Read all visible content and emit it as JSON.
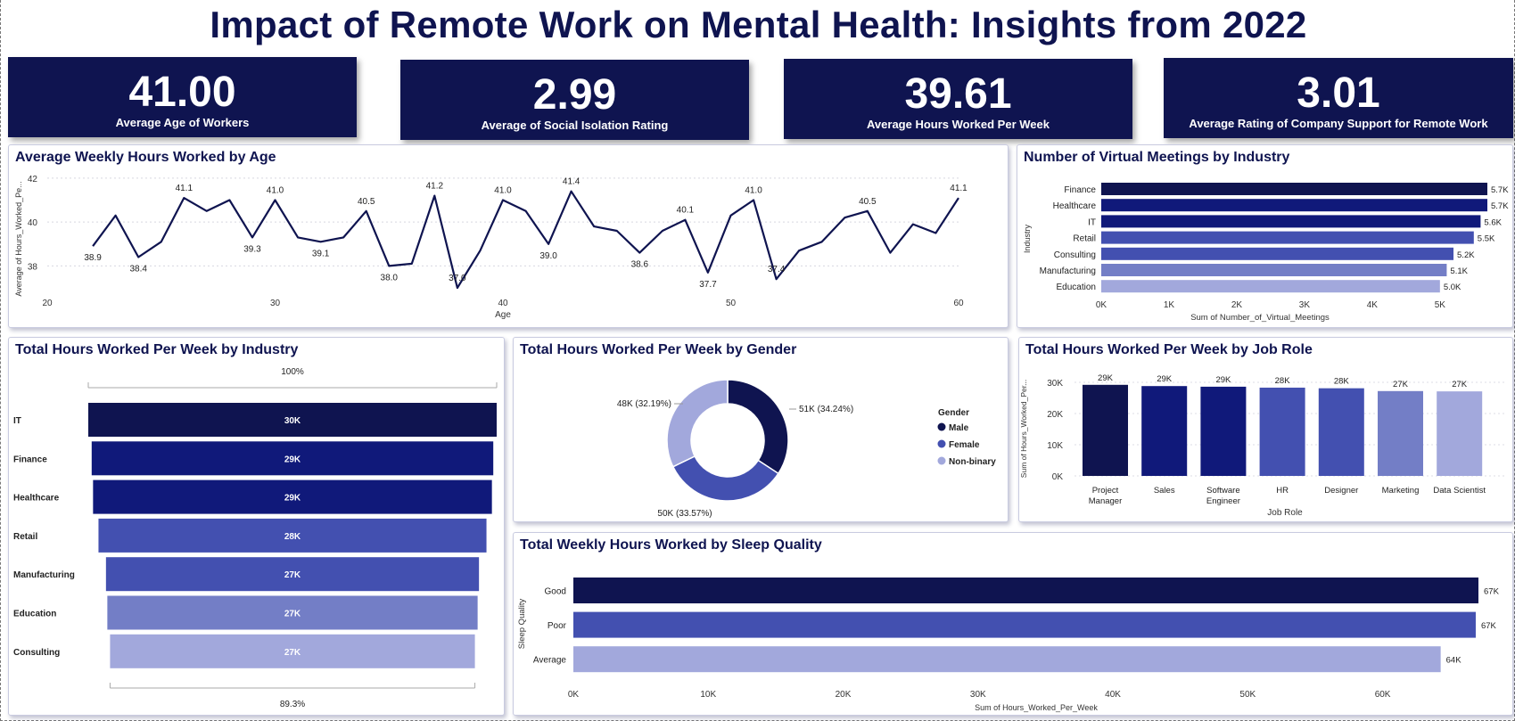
{
  "title": "Impact of Remote Work on Mental Health: Insights from 2022",
  "colors": {
    "navy": "#0f1450",
    "dark": "#10197a",
    "mid": "#4350b0",
    "light": "#737ec6",
    "pale": "#a2a8dc"
  },
  "kpis": [
    {
      "value": "41.00",
      "label": "Average Age of Workers"
    },
    {
      "value": "2.99",
      "label": "Average of Social Isolation Rating"
    },
    {
      "value": "39.61",
      "label": "Average Hours Worked Per Week"
    },
    {
      "value": "3.01",
      "label": "Average Rating of Company Support for Remote Work"
    }
  ],
  "panels": {
    "age": "Average Weekly Hours Worked by Age",
    "meetings": "Number of Virtual Meetings by Industry",
    "industry": "Total Hours Worked Per Week by Industry",
    "gender": "Total Hours Worked Per Week by Gender",
    "jobrole": "Total Hours Worked Per Week by Job Role",
    "sleep": "Total Weekly Hours Worked by Sleep Quality"
  },
  "chart_data": [
    {
      "id": "age",
      "type": "line",
      "title": "Average Weekly Hours Worked by Age",
      "xlabel": "Age",
      "ylabel": "Average of Hours_Worked_Pe...",
      "xlim": [
        20,
        60
      ],
      "ylim": [
        37,
        42.2
      ],
      "xticks": [
        "20",
        "30",
        "40",
        "50",
        "60"
      ],
      "yticks": [
        "38",
        "40",
        "42"
      ],
      "x": [
        22,
        23,
        24,
        25,
        26,
        27,
        28,
        29,
        30,
        31,
        32,
        33,
        34,
        35,
        36,
        37,
        38,
        39,
        40,
        41,
        42,
        43,
        44,
        45,
        46,
        47,
        48,
        49,
        50,
        51,
        52,
        53,
        54,
        55,
        56,
        57,
        58,
        59,
        60
      ],
      "y": [
        38.9,
        40.3,
        38.4,
        39.1,
        41.1,
        40.5,
        41.0,
        39.3,
        41.0,
        39.3,
        39.1,
        39.3,
        40.5,
        38.0,
        38.1,
        41.2,
        37.0,
        38.7,
        41.0,
        40.5,
        39.0,
        41.4,
        39.8,
        39.6,
        38.6,
        39.6,
        40.1,
        37.7,
        40.3,
        41.0,
        37.4,
        38.7,
        39.1,
        40.2,
        40.5,
        38.6,
        39.9,
        39.5,
        41.1
      ],
      "labels": [
        {
          "x": 22,
          "y": 38.9,
          "text": "38.9",
          "pos": "below"
        },
        {
          "x": 24,
          "y": 38.4,
          "text": "38.4",
          "pos": "below"
        },
        {
          "x": 26,
          "y": 41.1,
          "text": "41.1",
          "pos": "above"
        },
        {
          "x": 29,
          "y": 39.3,
          "text": "39.3",
          "pos": "below"
        },
        {
          "x": 30,
          "y": 41.0,
          "text": "41.0",
          "pos": "above"
        },
        {
          "x": 32,
          "y": 39.1,
          "text": "39.1",
          "pos": "below"
        },
        {
          "x": 34,
          "y": 40.5,
          "text": "40.5",
          "pos": "above"
        },
        {
          "x": 35,
          "y": 38.0,
          "text": "38.0",
          "pos": "below"
        },
        {
          "x": 37,
          "y": 41.2,
          "text": "41.2",
          "pos": "above"
        },
        {
          "x": 38,
          "y": 37.0,
          "text": "37.0",
          "pos": "above"
        },
        {
          "x": 40,
          "y": 41.0,
          "text": "41.0",
          "pos": "above"
        },
        {
          "x": 42,
          "y": 39.0,
          "text": "39.0",
          "pos": "below"
        },
        {
          "x": 43,
          "y": 41.4,
          "text": "41.4",
          "pos": "above"
        },
        {
          "x": 46,
          "y": 38.6,
          "text": "38.6",
          "pos": "below"
        },
        {
          "x": 48,
          "y": 40.1,
          "text": "40.1",
          "pos": "above"
        },
        {
          "x": 49,
          "y": 37.7,
          "text": "37.7",
          "pos": "below"
        },
        {
          "x": 51,
          "y": 41.0,
          "text": "41.0",
          "pos": "above"
        },
        {
          "x": 52,
          "y": 37.4,
          "text": "37.4",
          "pos": "above"
        },
        {
          "x": 56,
          "y": 40.5,
          "text": "40.5",
          "pos": "above"
        },
        {
          "x": 60,
          "y": 41.1,
          "text": "41.1",
          "pos": "above"
        }
      ]
    },
    {
      "id": "meetings",
      "type": "bar",
      "orientation": "horizontal",
      "title": "Number of Virtual Meetings by Industry",
      "xlabel": "Sum of Number_of_Virtual_Meetings",
      "ylabel": "Industry",
      "categories": [
        "Finance",
        "Healthcare",
        "IT",
        "Retail",
        "Consulting",
        "Manufacturing",
        "Education"
      ],
      "values": [
        5700,
        5700,
        5600,
        5500,
        5200,
        5100,
        5000
      ],
      "data_labels": [
        "5.7K",
        "5.7K",
        "5.6K",
        "5.5K",
        "5.2K",
        "5.1K",
        "5.0K"
      ],
      "colors": [
        "#0f1450",
        "#10197a",
        "#10197a",
        "#4350b0",
        "#4350b0",
        "#737ec6",
        "#a2a8dc"
      ],
      "xlim": [
        0,
        5700
      ],
      "xticks": [
        "0K",
        "1K",
        "2K",
        "3K",
        "4K",
        "5K"
      ]
    },
    {
      "id": "industry",
      "type": "bar",
      "orientation": "funnel",
      "title": "Total Hours Worked Per Week by Industry",
      "categories": [
        "IT",
        "Finance",
        "Healthcare",
        "Retail",
        "Manufacturing",
        "Education",
        "Consulting"
      ],
      "values": [
        30000,
        29500,
        29300,
        28500,
        27400,
        27200,
        26800
      ],
      "data_labels": [
        "30K",
        "29K",
        "29K",
        "28K",
        "27K",
        "27K",
        "27K"
      ],
      "colors": [
        "#0f1450",
        "#10197a",
        "#10197a",
        "#4350b0",
        "#4350b0",
        "#737ec6",
        "#a2a8dc"
      ],
      "top_label": "100%",
      "bottom_label": "89.3%"
    },
    {
      "id": "gender",
      "type": "pie",
      "title": "Total Hours Worked Per Week by Gender",
      "legend_title": "Gender",
      "legend_position": "right",
      "slices": [
        {
          "name": "Male",
          "value": 34.24,
          "label": "51K (34.24%)",
          "color": "#0f1450"
        },
        {
          "name": "Female",
          "value": 33.57,
          "label": "50K (33.57%)",
          "color": "#4350b0"
        },
        {
          "name": "Non-binary",
          "value": 32.19,
          "label": "48K (32.19%)",
          "color": "#a2a8dc"
        }
      ]
    },
    {
      "id": "jobrole",
      "type": "bar",
      "orientation": "vertical",
      "title": "Total Hours Worked Per Week by Job Role",
      "xlabel": "Job Role",
      "ylabel": "Sum of Hours_Worked_Per...",
      "categories": [
        [
          "Project",
          "Manager"
        ],
        [
          "Sales"
        ],
        [
          "Software",
          "Engineer"
        ],
        [
          "HR"
        ],
        [
          "Designer"
        ],
        [
          "Marketing"
        ],
        [
          "Data Scientist"
        ]
      ],
      "values": [
        29200,
        28800,
        28600,
        28300,
        28100,
        27200,
        27100
      ],
      "data_labels": [
        "29K",
        "29K",
        "29K",
        "28K",
        "28K",
        "27K",
        "27K"
      ],
      "colors": [
        "#0f1450",
        "#10197a",
        "#10197a",
        "#4350b0",
        "#4350b0",
        "#737ec6",
        "#a2a8dc"
      ],
      "ylim": [
        0,
        30000
      ],
      "yticks": [
        "0K",
        "10K",
        "20K",
        "30K"
      ]
    },
    {
      "id": "sleep",
      "type": "bar",
      "orientation": "horizontal",
      "title": "Total Weekly Hours Worked by Sleep Quality",
      "xlabel": "Sum of Hours_Worked_Per_Week",
      "ylabel": "Sleep Quality",
      "categories": [
        "Good",
        "Poor",
        "Average"
      ],
      "values": [
        67100,
        66900,
        64300
      ],
      "data_labels": [
        "67K",
        "67K",
        "64K"
      ],
      "colors": [
        "#0f1450",
        "#4350b0",
        "#a2a8dc"
      ],
      "xlim": [
        0,
        67100
      ],
      "xticks": [
        "0K",
        "10K",
        "20K",
        "30K",
        "40K",
        "50K",
        "60K"
      ]
    }
  ]
}
